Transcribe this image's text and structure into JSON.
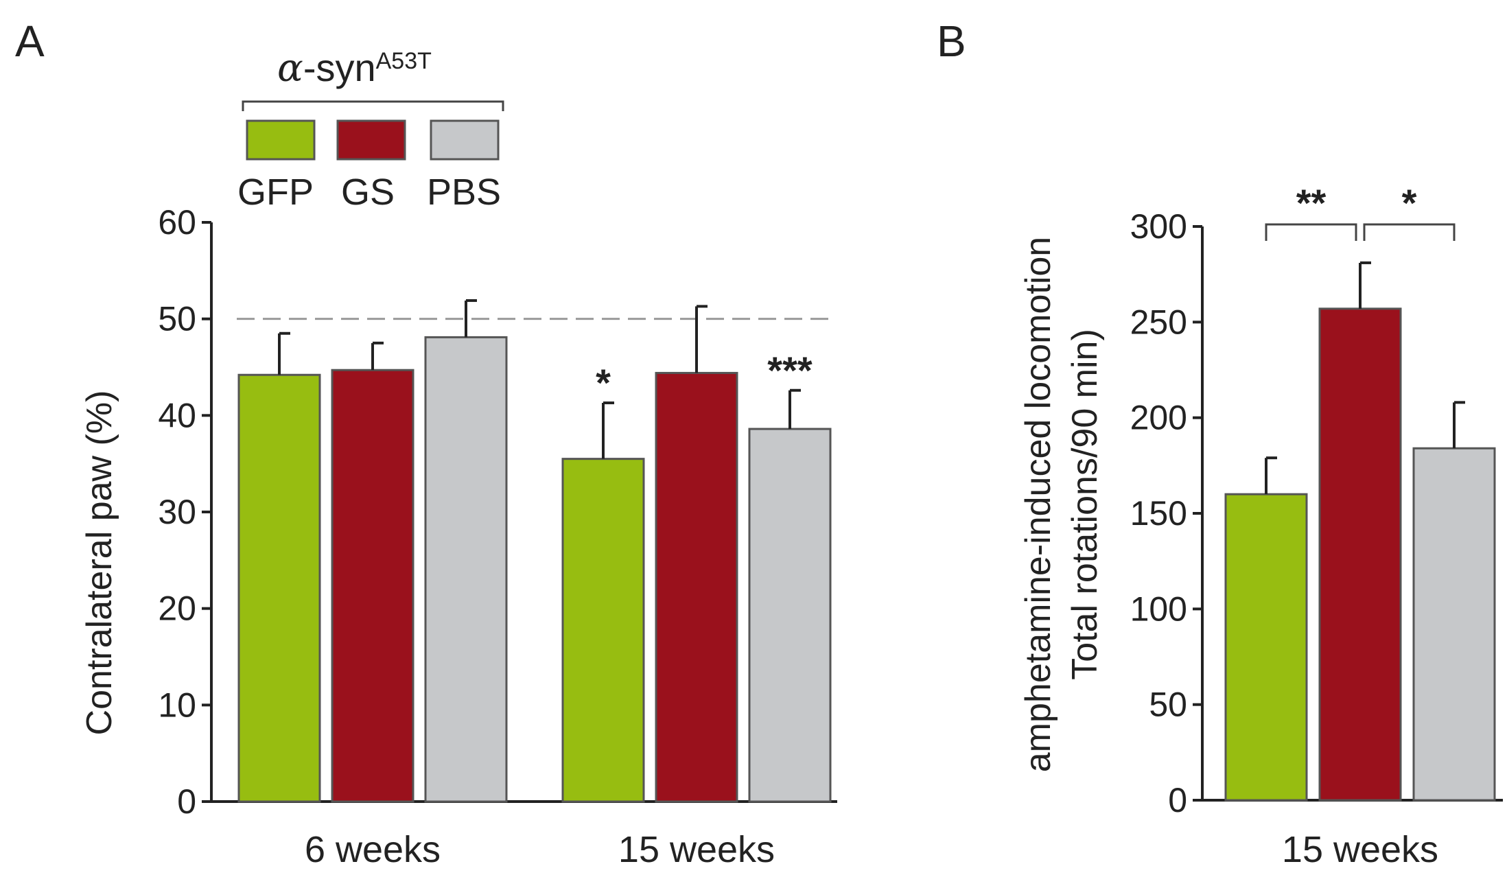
{
  "colors": {
    "GFP": "#97bd11",
    "GS": "#9a111c",
    "PBS": "#c6c8ca",
    "text": "#222222",
    "refline": "#999999"
  },
  "legend": {
    "title_greek": "α",
    "title_main": "-syn",
    "title_sup": "A53T",
    "items": [
      {
        "key": "GFP",
        "label": "GFP"
      },
      {
        "key": "GS",
        "label": "GS"
      },
      {
        "key": "PBS",
        "label": "PBS"
      }
    ]
  },
  "chart_data": [
    {
      "panel": "A",
      "type": "bar",
      "ylabel": "Contralateral paw (%)",
      "xlabel": "",
      "ylim": [
        0,
        60
      ],
      "yticks": [
        0,
        10,
        20,
        30,
        40,
        50,
        60
      ],
      "reference_line": 50,
      "categories": [
        "6 weeks",
        "15 weeks"
      ],
      "series": [
        {
          "name": "GFP",
          "values": [
            44.2,
            35.5
          ],
          "errors": [
            4.3,
            5.8
          ]
        },
        {
          "name": "GS",
          "values": [
            44.7,
            44.4
          ],
          "errors": [
            2.8,
            6.9
          ]
        },
        {
          "name": "PBS",
          "values": [
            48.1,
            38.6
          ],
          "errors": [
            3.8,
            4.0
          ]
        }
      ],
      "annotations": [
        {
          "category": 1,
          "series": 0,
          "text": "*"
        },
        {
          "category": 1,
          "series": 2,
          "text": "***"
        }
      ]
    },
    {
      "panel": "B",
      "type": "bar",
      "ylabel_line1": "amphetamine-induced locomotion",
      "ylabel_line2": "Total rotations/90 min)",
      "xlabel": "",
      "ylim": [
        0,
        300
      ],
      "yticks": [
        0,
        50,
        100,
        150,
        200,
        250,
        300
      ],
      "categories": [
        "15 weeks"
      ],
      "series": [
        {
          "name": "GFP",
          "values": [
            160
          ],
          "errors": [
            19
          ]
        },
        {
          "name": "GS",
          "values": [
            257
          ],
          "errors": [
            24
          ]
        },
        {
          "name": "PBS",
          "values": [
            184
          ],
          "errors": [
            24
          ]
        }
      ],
      "brackets": [
        {
          "from": 0,
          "to": 1,
          "text": "**"
        },
        {
          "from": 1,
          "to": 2,
          "text": "*"
        }
      ]
    }
  ]
}
